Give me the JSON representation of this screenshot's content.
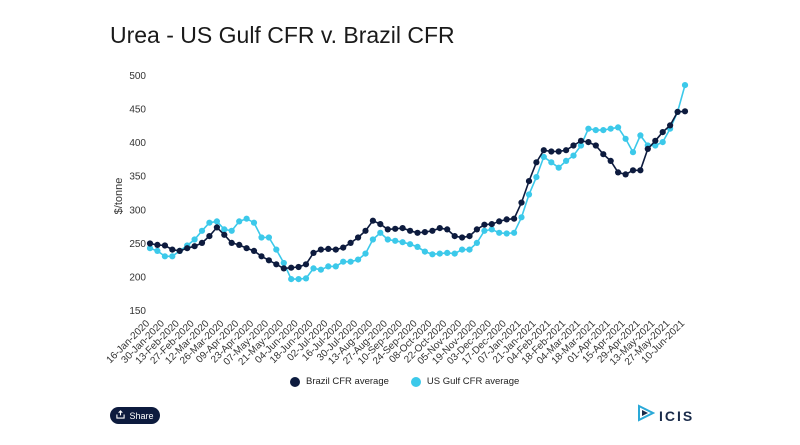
{
  "chart_data": {
    "type": "line",
    "title": "Urea - US Gulf CFR v. Brazil CFR",
    "ylabel": "$/tonne",
    "xlabel": "",
    "ylim": [
      150,
      500
    ],
    "yticks": [
      150,
      200,
      250,
      300,
      350,
      400,
      450,
      500
    ],
    "grid": false,
    "legend_position": "bottom",
    "x": [
      "16-Jan-2020",
      "23-Jan-2020",
      "30-Jan-2020",
      "06-Feb-2020",
      "13-Feb-2020",
      "20-Feb-2020",
      "27-Feb-2020",
      "05-Mar-2020",
      "12-Mar-2020",
      "19-Mar-2020",
      "26-Mar-2020",
      "02-Apr-2020",
      "09-Apr-2020",
      "16-Apr-2020",
      "23-Apr-2020",
      "30-Apr-2020",
      "07-May-2020",
      "14-May-2020",
      "21-May-2020",
      "28-May-2020",
      "04-Jun-2020",
      "11-Jun-2020",
      "18-Jun-2020",
      "25-Jun-2020",
      "02-Jul-2020",
      "09-Jul-2020",
      "16-Jul-2020",
      "23-Jul-2020",
      "30-Jul-2020",
      "06-Aug-2020",
      "13-Aug-2020",
      "20-Aug-2020",
      "27-Aug-2020",
      "03-Sep-2020",
      "10-Sep-2020",
      "17-Sep-2020",
      "24-Sep-2020",
      "01-Oct-2020",
      "08-Oct-2020",
      "15-Oct-2020",
      "22-Oct-2020",
      "29-Oct-2020",
      "05-Nov-2020",
      "12-Nov-2020",
      "19-Nov-2020",
      "26-Nov-2020",
      "03-Dec-2020",
      "10-Dec-2020",
      "17-Dec-2020",
      "24-Dec-2020",
      "07-Jan-2021",
      "14-Jan-2021",
      "21-Jan-2021",
      "28-Jan-2021",
      "04-Feb-2021",
      "11-Feb-2021",
      "18-Feb-2021",
      "25-Feb-2021",
      "04-Mar-2021",
      "11-Mar-2021",
      "18-Mar-2021",
      "25-Mar-2021",
      "01-Apr-2021",
      "08-Apr-2021",
      "15-Apr-2021",
      "22-Apr-2021",
      "29-Apr-2021",
      "06-May-2021",
      "13-May-2021",
      "20-May-2021",
      "27-May-2021",
      "03-Jun-2021",
      "10-Jun-2021"
    ],
    "tick_labels": [
      "16-Jan-2020",
      "30-Jan-2020",
      "13-Feb-2020",
      "27-Feb-2020",
      "12-Mar-2020",
      "26-Mar-2020",
      "09-Apr-2020",
      "23-Apr-2020",
      "07-May-2020",
      "21-May-2020",
      "04-Jun-2020",
      "18-Jun-2020",
      "02-Jul-2020",
      "16-Jul-2020",
      "30-Jul-2020",
      "13-Aug-2020",
      "27-Aug-2020",
      "10-Sep-2020",
      "24-Sep-2020",
      "08-Oct-2020",
      "22-Oct-2020",
      "05-Nov-2020",
      "19-Nov-2020",
      "03-Dec-2020",
      "17-Dec-2020",
      "07-Jan-2021",
      "21-Jan-2021",
      "04-Feb-2021",
      "18-Feb-2021",
      "04-Mar-2021",
      "18-Mar-2021",
      "01-Apr-2021",
      "15-Apr-2021",
      "29-Apr-2021",
      "13-May-2021",
      "27-May-2021",
      "10-Jun-2021"
    ],
    "series": [
      {
        "name": "Brazil CFR average",
        "color": "#0d1b3e",
        "values": [
          249,
          247,
          246,
          240,
          238,
          242,
          245,
          250,
          260,
          273,
          262,
          250,
          247,
          242,
          238,
          230,
          224,
          218,
          212,
          213,
          214,
          218,
          235,
          240,
          241,
          240,
          243,
          250,
          258,
          268,
          283,
          278,
          270,
          271,
          272,
          268,
          265,
          266,
          268,
          272,
          270,
          260,
          258,
          260,
          270,
          277,
          278,
          282,
          285,
          286,
          310,
          342,
          370,
          388,
          386,
          386,
          388,
          395,
          402,
          400,
          395,
          382,
          372,
          355,
          352,
          358,
          358,
          390,
          402,
          415,
          425,
          445,
          446
        ]
      },
      {
        "name": "US Gulf CFR average",
        "color": "#3cc9ea",
        "values": [
          242,
          238,
          230,
          230,
          238,
          246,
          255,
          268,
          280,
          282,
          270,
          268,
          282,
          286,
          280,
          258,
          258,
          240,
          220,
          196,
          196,
          197,
          212,
          210,
          215,
          215,
          222,
          222,
          225,
          234,
          255,
          265,
          255,
          253,
          251,
          248,
          244,
          237,
          233,
          234,
          235,
          234,
          240,
          240,
          250,
          268,
          270,
          265,
          264,
          265,
          288,
          322,
          348,
          378,
          370,
          362,
          372,
          380,
          395,
          420,
          418,
          418,
          420,
          422,
          405,
          385,
          410,
          395,
          395,
          400,
          420,
          445,
          485
        ]
      }
    ]
  },
  "legend": {
    "items": [
      {
        "label": "Brazil CFR average",
        "color": "#0d1b3e"
      },
      {
        "label": "US Gulf CFR average",
        "color": "#3cc9ea"
      }
    ]
  },
  "share": {
    "label": "Share",
    "icon": "share-icon"
  },
  "logo": {
    "text": "ICIS",
    "icon": "icis-logo-icon"
  }
}
